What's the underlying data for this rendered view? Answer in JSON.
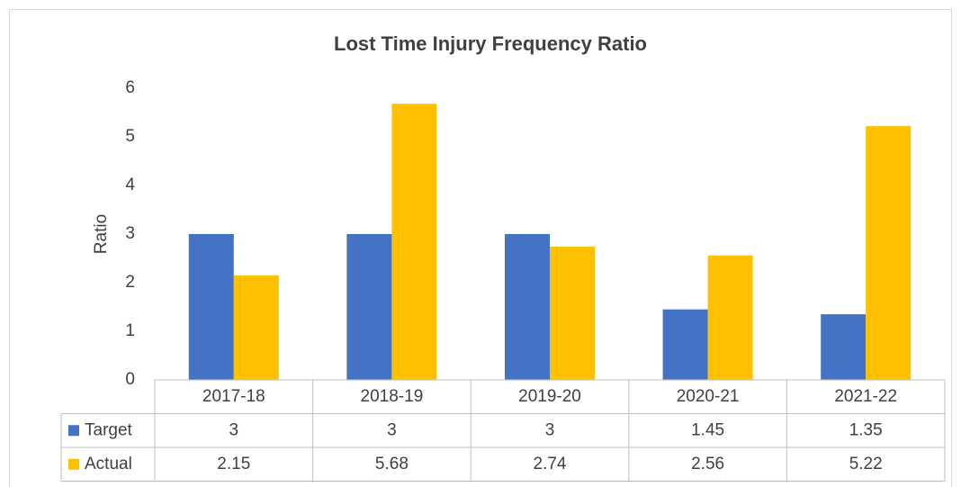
{
  "chart_data": {
    "type": "bar",
    "title": "Lost Time Injury Frequency Ratio",
    "y_label": "Ratio",
    "categories": [
      "2017-18",
      "2018-19",
      "2019-20",
      "2020-21",
      "2021-22"
    ],
    "series": [
      {
        "name": "Target",
        "color": "#4472c4",
        "values": [
          3,
          3,
          3,
          1.45,
          1.35
        ]
      },
      {
        "name": "Actual",
        "color": "#ffc000",
        "values": [
          2.15,
          5.68,
          2.74,
          2.56,
          5.22
        ]
      }
    ],
    "ylim": [
      0,
      6
    ],
    "yticks": [
      0,
      1,
      2,
      3,
      4,
      5,
      6
    ],
    "grid": false,
    "data_table": true
  }
}
